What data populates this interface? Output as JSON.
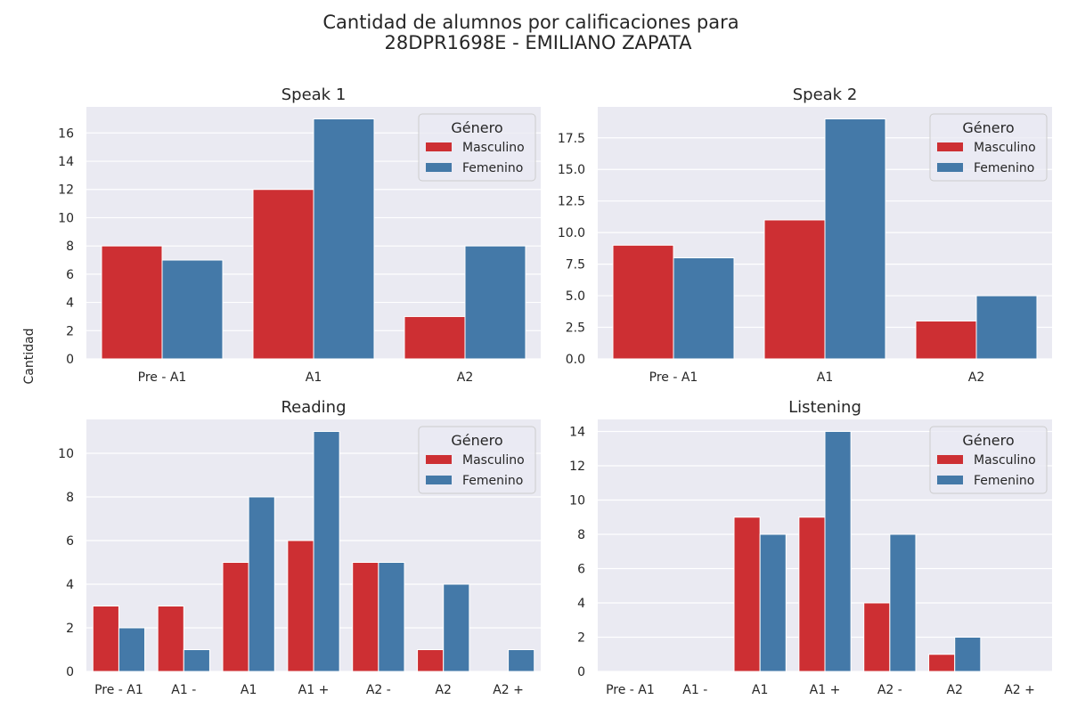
{
  "figure": {
    "title_line1": "Cantidad de alumnos por calificaciones para",
    "title_line2": "28DPR1698E - EMILIANO ZAPATA",
    "shared_ylabel": "Cantidad"
  },
  "style": {
    "panel_bg": "#eaeaf2",
    "grid_color": "#ffffff",
    "legend_bg": "#eaeaf2",
    "legend_border": "#cccccc",
    "series_colors": {
      "Masculino": "#cd2f33",
      "Femenino": "#4479a8"
    }
  },
  "legend": {
    "title": "Género",
    "placement": "top-right"
  },
  "chart_data": [
    {
      "type": "bar",
      "title": "Speak 1",
      "categories": [
        "Pre - A1",
        "A1",
        "A2"
      ],
      "series": [
        {
          "name": "Masculino",
          "values": [
            8,
            12,
            3
          ]
        },
        {
          "name": "Femenino",
          "values": [
            7,
            17,
            8
          ]
        }
      ],
      "ylim": [
        0,
        17.85
      ],
      "yticks": [
        0,
        2,
        4,
        6,
        8,
        10,
        12,
        14,
        16
      ],
      "ytick_labels": [
        "0",
        "2",
        "4",
        "6",
        "8",
        "10",
        "12",
        "14",
        "16"
      ],
      "grid": true
    },
    {
      "type": "bar",
      "title": "Speak 2",
      "categories": [
        "Pre - A1",
        "A1",
        "A2"
      ],
      "series": [
        {
          "name": "Masculino",
          "values": [
            9,
            11,
            3
          ]
        },
        {
          "name": "Femenino",
          "values": [
            8,
            19,
            5
          ]
        }
      ],
      "ylim": [
        0,
        19.95
      ],
      "yticks": [
        0,
        2.5,
        5,
        7.5,
        10,
        12.5,
        15,
        17.5
      ],
      "ytick_labels": [
        "0.0",
        "2.5",
        "5.0",
        "7.5",
        "10.0",
        "12.5",
        "15.0",
        "17.5"
      ],
      "grid": true
    },
    {
      "type": "bar",
      "title": "Reading",
      "categories": [
        "Pre - A1",
        "A1 -",
        "A1",
        "A1 +",
        "A2 -",
        "A2",
        "A2 +"
      ],
      "series": [
        {
          "name": "Masculino",
          "values": [
            3,
            3,
            5,
            6,
            5,
            1,
            0
          ]
        },
        {
          "name": "Femenino",
          "values": [
            2,
            1,
            8,
            11,
            5,
            4,
            1
          ]
        }
      ],
      "ylim": [
        0,
        11.55
      ],
      "yticks": [
        0,
        2,
        4,
        6,
        8,
        10
      ],
      "ytick_labels": [
        "0",
        "2",
        "4",
        "6",
        "8",
        "10"
      ],
      "grid": true
    },
    {
      "type": "bar",
      "title": "Listening",
      "categories": [
        "Pre - A1",
        "A1 -",
        "A1",
        "A1 +",
        "A2 -",
        "A2",
        "A2 +"
      ],
      "series": [
        {
          "name": "Masculino",
          "values": [
            0,
            0,
            9,
            9,
            4,
            1,
            0
          ]
        },
        {
          "name": "Femenino",
          "values": [
            0,
            0,
            8,
            14,
            8,
            2,
            0
          ]
        }
      ],
      "ylim": [
        0,
        14.7
      ],
      "yticks": [
        0,
        2,
        4,
        6,
        8,
        10,
        12,
        14
      ],
      "ytick_labels": [
        "0",
        "2",
        "4",
        "6",
        "8",
        "10",
        "12",
        "14"
      ],
      "grid": true
    }
  ]
}
